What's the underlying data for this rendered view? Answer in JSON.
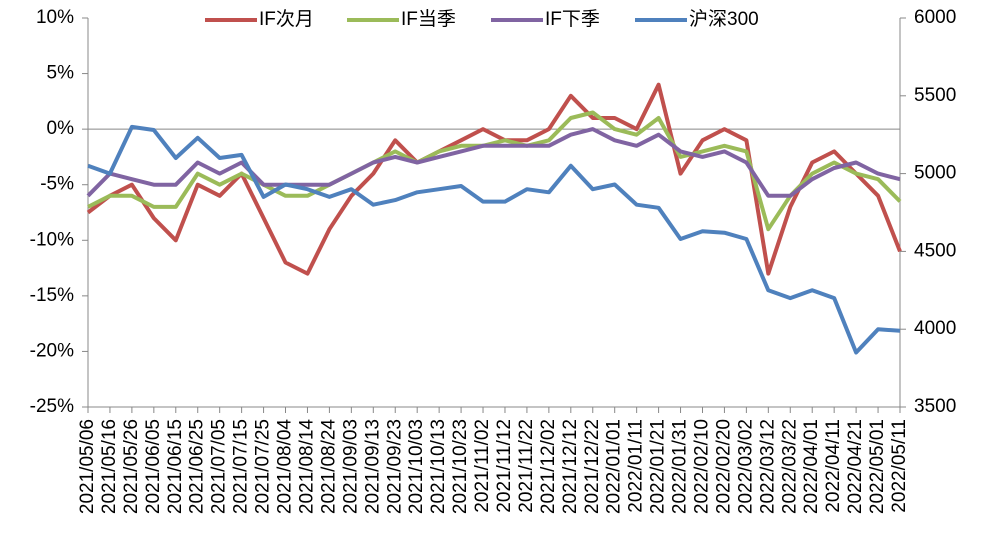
{
  "chart_data": {
    "type": "line",
    "categories": [
      "2021/05/06",
      "2021/05/16",
      "2021/05/26",
      "2021/06/05",
      "2021/06/15",
      "2021/06/25",
      "2021/07/05",
      "2021/07/15",
      "2021/07/25",
      "2021/08/04",
      "2021/08/14",
      "2021/08/24",
      "2021/09/03",
      "2021/09/13",
      "2021/09/23",
      "2021/10/03",
      "2021/10/13",
      "2021/10/23",
      "2021/11/02",
      "2021/11/12",
      "2021/11/22",
      "2021/12/02",
      "2021/12/12",
      "2021/12/22",
      "2022/01/01",
      "2022/01/11",
      "2022/01/21",
      "2022/01/31",
      "2022/02/10",
      "2022/02/20",
      "2022/03/02",
      "2022/03/12",
      "2022/03/22",
      "2022/04/01",
      "2022/04/11",
      "2022/04/21",
      "2022/05/01",
      "2022/05/11"
    ],
    "series": [
      {
        "name": "IF次月",
        "color": "#c0504d",
        "values": [
          -7.5,
          -6,
          -5,
          -8,
          -10,
          -5,
          -6,
          -4,
          -8,
          -12,
          -13,
          -9,
          -6,
          -4,
          -1,
          -3,
          -2,
          -1,
          0,
          -1,
          -1,
          0,
          3,
          1,
          1,
          0,
          4,
          -4,
          -1,
          0,
          -1,
          -13,
          -7,
          -3,
          -2,
          -4,
          -6,
          -11
        ]
      },
      {
        "name": "IF当季",
        "color": "#9bbb59",
        "values": [
          -7,
          -6,
          -6,
          -7,
          -7,
          -4,
          -5,
          -4,
          -5,
          -6,
          -6,
          -5,
          -4,
          -3,
          -2,
          -3,
          -2,
          -1.5,
          -1.5,
          -1,
          -1.5,
          -1,
          1,
          1.5,
          0,
          -0.5,
          1,
          -2.5,
          -2,
          -1.5,
          -2,
          -9,
          -6,
          -4,
          -3,
          -4,
          -4.5,
          -6.5
        ]
      },
      {
        "name": "IF下季",
        "color": "#8064a2",
        "values": [
          -6,
          -4,
          -4.5,
          -5,
          -5,
          -3,
          -4,
          -3,
          -5,
          -5,
          -5,
          -5,
          -4,
          -3,
          -2.5,
          -3,
          -2.5,
          -2,
          -1.5,
          -1.5,
          -1.5,
          -1.5,
          -0.5,
          0,
          -1,
          -1.5,
          -0.5,
          -2,
          -2.5,
          -2,
          -3,
          -6,
          -6,
          -4.5,
          -3.5,
          -3,
          -4,
          -4.5
        ]
      },
      {
        "name": "沪深300",
        "color": "#4f81bd",
        "axis": "y2",
        "values": [
          5050,
          5000,
          5300,
          5280,
          5100,
          5230,
          5100,
          5120,
          4850,
          4930,
          4900,
          4850,
          4900,
          4800,
          4830,
          4880,
          4900,
          4920,
          4820,
          4820,
          4900,
          4880,
          5050,
          4900,
          4930,
          4800,
          4780,
          4580,
          4630,
          4620,
          4580,
          4250,
          4200,
          4250,
          4200,
          3850,
          4000,
          3990
        ]
      }
    ],
    "ylim": [
      -25,
      10
    ],
    "yticks": [
      {
        "value": -25,
        "label": "-25%"
      },
      {
        "value": -20,
        "label": "-20%"
      },
      {
        "value": -15,
        "label": "-15%"
      },
      {
        "value": -10,
        "label": "-10%"
      },
      {
        "value": -5,
        "label": "-5%"
      },
      {
        "value": 0,
        "label": "0%"
      },
      {
        "value": 5,
        "label": "5%"
      },
      {
        "value": 10,
        "label": "10%"
      }
    ],
    "y2lim": [
      3500,
      6000
    ],
    "y2ticks": [
      3500,
      4000,
      4500,
      5000,
      5500,
      6000
    ],
    "legend": "top"
  }
}
